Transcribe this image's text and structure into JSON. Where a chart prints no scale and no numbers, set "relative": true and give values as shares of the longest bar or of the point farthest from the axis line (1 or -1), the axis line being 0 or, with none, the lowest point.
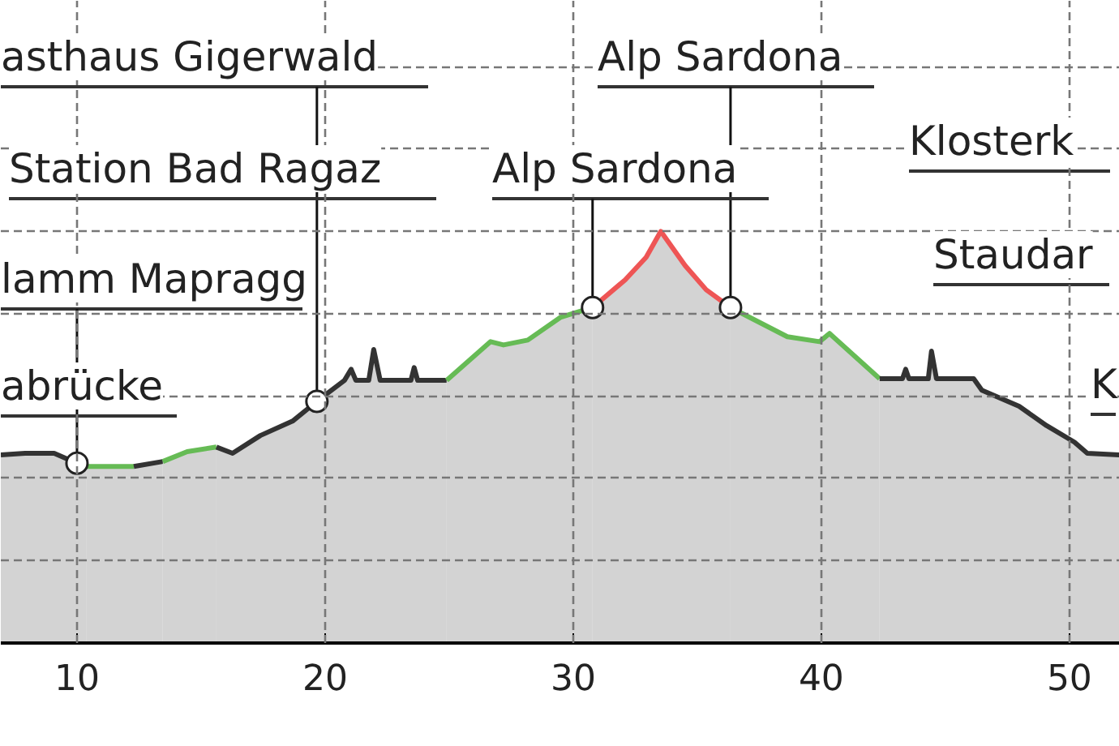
{
  "chart_data": {
    "type": "area",
    "relative": true,
    "xlim": [
      6.93,
      52.03
    ],
    "xticks": [
      10,
      20,
      30,
      40,
      50
    ],
    "grid": true,
    "series": [
      {
        "color": "#333333",
        "x": [
          6.93,
          7.91,
          9.08,
          10.0,
          10.39
        ],
        "values": [
          0.457,
          0.461,
          0.461,
          0.437,
          0.429
        ]
      },
      {
        "color": "#66bb55",
        "x": [
          10.39,
          12.29
        ],
        "values": [
          0.429,
          0.429
        ]
      },
      {
        "color": "#333333",
        "x": [
          12.29,
          13.46
        ],
        "values": [
          0.429,
          0.441
        ]
      },
      {
        "color": "#66bb55",
        "x": [
          13.46,
          14.44,
          15.62
        ],
        "values": [
          0.441,
          0.465,
          0.476
        ]
      },
      {
        "color": "#333333",
        "x": [
          15.62,
          16.27,
          17.39,
          18.69,
          19.67,
          20.78,
          21.05,
          21.24,
          21.76,
          21.96,
          22.22,
          23.46,
          23.59,
          23.73,
          24.9
        ],
        "values": [
          0.476,
          0.461,
          0.504,
          0.539,
          0.587,
          0.638,
          0.665,
          0.638,
          0.638,
          0.713,
          0.638,
          0.638,
          0.669,
          0.638,
          0.638
        ]
      },
      {
        "color": "#66bb55",
        "x": [
          24.9,
          26.67,
          27.19,
          28.17,
          29.48,
          30.78
        ],
        "values": [
          0.638,
          0.732,
          0.724,
          0.736,
          0.791,
          0.815
        ]
      },
      {
        "color": "#ee5555",
        "x": [
          30.78,
          32.09,
          32.94,
          33.53,
          34.51,
          35.36,
          36.34
        ],
        "values": [
          0.815,
          0.882,
          0.937,
          1.0,
          0.917,
          0.858,
          0.815
        ]
      },
      {
        "color": "#66bb55",
        "x": [
          36.34,
          38.63,
          39.93,
          40.33,
          42.35
        ],
        "values": [
          0.815,
          0.744,
          0.732,
          0.752,
          0.642
        ]
      },
      {
        "color": "#333333",
        "x": [
          42.35,
          43.27,
          43.4,
          43.53,
          44.31,
          44.44,
          44.64,
          46.14,
          46.47,
          47.97,
          49.08,
          50.2,
          50.72,
          52.03
        ],
        "values": [
          0.642,
          0.642,
          0.665,
          0.642,
          0.642,
          0.709,
          0.642,
          0.642,
          0.614,
          0.575,
          0.528,
          0.488,
          0.461,
          0.457
        ]
      }
    ],
    "annotations": [
      {
        "text": "asthaus Gigerwald",
        "x": 19.67,
        "y": 0.587
      },
      {
        "text": "Alp Sardona",
        "x": 36.34,
        "y": 0.815
      },
      "Station Bad Ragaz",
      {
        "text": "Alp Sardona",
        "x": 30.78,
        "y": 0.815
      },
      "Klosterk",
      {
        "text": "lamm Mapragg",
        "x": 10.0,
        "y": 0.437
      },
      "Staudar",
      "abrücke",
      "K"
    ]
  }
}
